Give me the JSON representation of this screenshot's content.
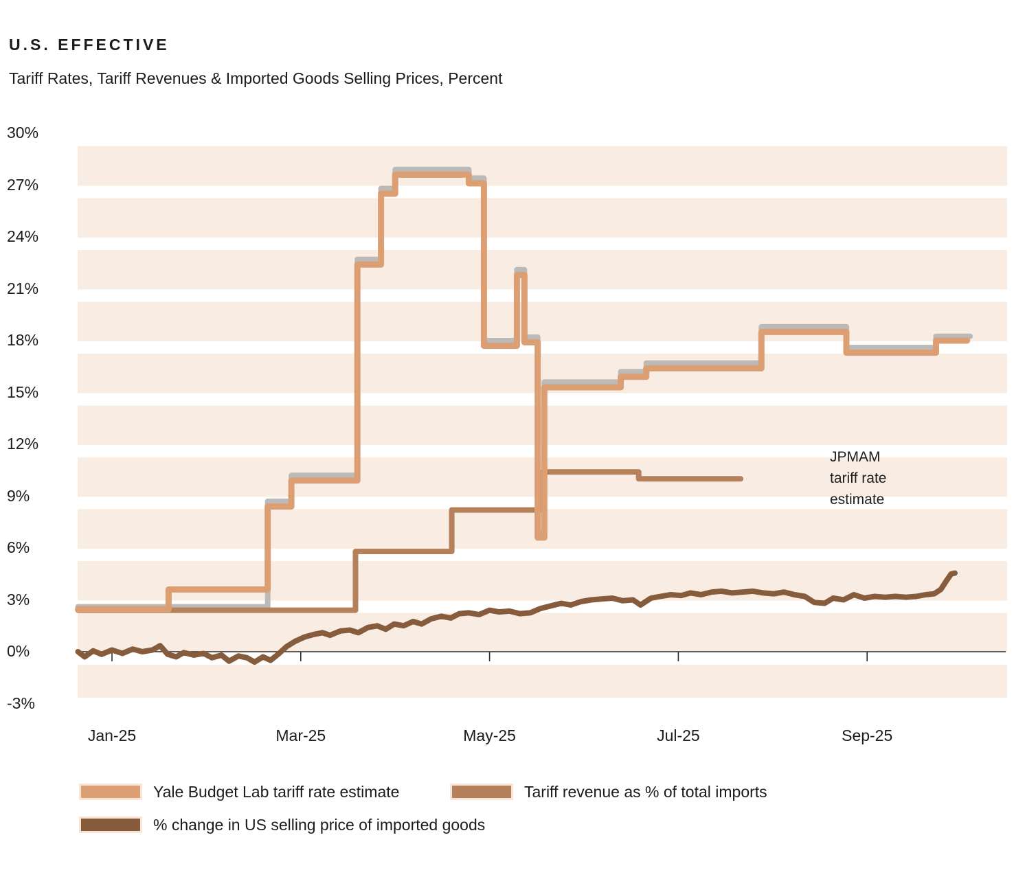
{
  "header": {
    "title": "U.S. EFFECTIVE",
    "subtitle": "Tariff Rates, Tariff Revenues & Imported Goods Selling Prices, Percent"
  },
  "annotation": {
    "line1": "JPMAM",
    "line2": "tariff rate",
    "line3": "estimate"
  },
  "legend": {
    "items": [
      {
        "label": "Yale Budget Lab tariff rate estimate",
        "color": "#dc9f73"
      },
      {
        "label": "Tariff revenue as % of total imports",
        "color": "#b5815a"
      },
      {
        "label": "% change in US selling price of imported goods",
        "color": "#865c3d"
      }
    ]
  },
  "colors": {
    "yale_line": "#dc9f73",
    "revenue_line": "#b5815a",
    "price_line": "#865c3d",
    "jpmam_line": "#bcbab8",
    "stripe_band": "#f8ece3",
    "axis": "#2f2b28",
    "text": "#1d1b1a"
  },
  "chart_data": {
    "type": "line",
    "title": "U.S. EFFECTIVE",
    "subtitle": "Tariff Rates, Tariff Revenues & Imported Goods Selling Prices, Percent",
    "xlabel": "",
    "ylabel": "Percent",
    "x_unit": "months after Jan-2025 tick",
    "x_axis": {
      "ticks": [
        {
          "label": "Jan-25",
          "month": 0
        },
        {
          "label": "Mar-25",
          "month": 2
        },
        {
          "label": "May-25",
          "month": 4
        },
        {
          "label": "Jul-25",
          "month": 6
        },
        {
          "label": "Sep-25",
          "month": 8
        }
      ],
      "range_months": [
        -0.37,
        9.55
      ]
    },
    "y_axis": {
      "min": -3,
      "max": 30,
      "step": 3,
      "ticks": [
        {
          "label": "30%",
          "value": 30
        },
        {
          "label": "27%",
          "value": 27
        },
        {
          "label": "24%",
          "value": 24
        },
        {
          "label": "21%",
          "value": 21
        },
        {
          "label": "18%",
          "value": 18
        },
        {
          "label": "15%",
          "value": 15
        },
        {
          "label": "12%",
          "value": 12
        },
        {
          "label": "9%",
          "value": 9
        },
        {
          "label": "6%",
          "value": 6
        },
        {
          "label": "3%",
          "value": 3
        },
        {
          "label": "0%",
          "value": 0
        },
        {
          "label": "-3%",
          "value": -3
        }
      ]
    },
    "grid": "horizontal striped bands",
    "legend_position": "bottom",
    "series": [
      {
        "name": "JPMAM tariff rate estimate",
        "color": "#bcbab8",
        "stroke_width": 8,
        "style": "step",
        "points": [
          [
            -0.36,
            2.6
          ],
          [
            1.65,
            2.6
          ],
          [
            1.65,
            8.7
          ],
          [
            1.9,
            8.7
          ],
          [
            1.9,
            10.2
          ],
          [
            2.6,
            10.2
          ],
          [
            2.6,
            22.7
          ],
          [
            2.85,
            22.7
          ],
          [
            2.85,
            26.8
          ],
          [
            3,
            26.8
          ],
          [
            3,
            27.9
          ],
          [
            3.78,
            27.9
          ],
          [
            3.78,
            27.4
          ],
          [
            3.94,
            27.4
          ],
          [
            3.94,
            18
          ],
          [
            4.29,
            18
          ],
          [
            4.29,
            22.1
          ],
          [
            4.37,
            22.1
          ],
          [
            4.37,
            18.2
          ],
          [
            4.51,
            18.2
          ],
          [
            4.51,
            6.9
          ],
          [
            4.58,
            6.9
          ],
          [
            4.58,
            15.6
          ],
          [
            5.39,
            15.6
          ],
          [
            5.39,
            16.2
          ],
          [
            5.66,
            16.2
          ],
          [
            5.66,
            16.7
          ],
          [
            6.88,
            16.7
          ],
          [
            6.88,
            18.8
          ],
          [
            7.78,
            18.8
          ],
          [
            7.78,
            17.6
          ],
          [
            8.73,
            17.6
          ],
          [
            8.73,
            18.25
          ],
          [
            9.09,
            18.25
          ]
        ]
      },
      {
        "name": "Tariff revenue as % of total imports",
        "color": "#b5815a",
        "stroke_width": 8,
        "style": "step",
        "points": [
          [
            -0.36,
            2.4
          ],
          [
            2.58,
            2.4
          ],
          [
            2.58,
            5.8
          ],
          [
            3.6,
            5.8
          ],
          [
            3.6,
            8.2
          ],
          [
            4.56,
            8.2
          ],
          [
            4.56,
            10.4
          ],
          [
            5.58,
            10.4
          ],
          [
            5.58,
            10
          ],
          [
            6.66,
            10
          ]
        ]
      },
      {
        "name": "% change in US selling price of imported goods",
        "color": "#865c3d",
        "stroke_width": 8,
        "style": "wiggly",
        "points": [
          [
            -0.36,
            0
          ],
          [
            -0.29,
            -0.3
          ],
          [
            -0.2,
            0.05
          ],
          [
            -0.11,
            -0.15
          ],
          [
            0,
            0.1
          ],
          [
            0.11,
            -0.1
          ],
          [
            0.22,
            0.15
          ],
          [
            0.32,
            0
          ],
          [
            0.43,
            0.1
          ],
          [
            0.51,
            0.35
          ],
          [
            0.59,
            -0.15
          ],
          [
            0.68,
            -0.3
          ],
          [
            0.76,
            -0.05
          ],
          [
            0.87,
            -0.2
          ],
          [
            0.97,
            -0.1
          ],
          [
            1.06,
            -0.35
          ],
          [
            1.16,
            -0.2
          ],
          [
            1.24,
            -0.55
          ],
          [
            1.34,
            -0.25
          ],
          [
            1.43,
            -0.35
          ],
          [
            1.51,
            -0.6
          ],
          [
            1.6,
            -0.3
          ],
          [
            1.68,
            -0.5
          ],
          [
            1.76,
            -0.15
          ],
          [
            1.85,
            0.3
          ],
          [
            1.94,
            0.6
          ],
          [
            2.04,
            0.85
          ],
          [
            2.14,
            1
          ],
          [
            2.23,
            1.1
          ],
          [
            2.31,
            0.95
          ],
          [
            2.42,
            1.2
          ],
          [
            2.52,
            1.25
          ],
          [
            2.61,
            1.1
          ],
          [
            2.71,
            1.4
          ],
          [
            2.81,
            1.5
          ],
          [
            2.9,
            1.3
          ],
          [
            2.99,
            1.6
          ],
          [
            3.09,
            1.5
          ],
          [
            3.19,
            1.75
          ],
          [
            3.28,
            1.6
          ],
          [
            3.38,
            1.9
          ],
          [
            3.49,
            2.05
          ],
          [
            3.59,
            1.95
          ],
          [
            3.68,
            2.2
          ],
          [
            3.78,
            2.25
          ],
          [
            3.89,
            2.15
          ],
          [
            4,
            2.4
          ],
          [
            4.1,
            2.3
          ],
          [
            4.21,
            2.35
          ],
          [
            4.32,
            2.2
          ],
          [
            4.43,
            2.25
          ],
          [
            4.54,
            2.5
          ],
          [
            4.65,
            2.65
          ],
          [
            4.76,
            2.8
          ],
          [
            4.86,
            2.7
          ],
          [
            4.97,
            2.9
          ],
          [
            5.08,
            3
          ],
          [
            5.19,
            3.05
          ],
          [
            5.3,
            3.1
          ],
          [
            5.41,
            2.95
          ],
          [
            5.52,
            3
          ],
          [
            5.6,
            2.7
          ],
          [
            5.71,
            3.1
          ],
          [
            5.81,
            3.2
          ],
          [
            5.92,
            3.3
          ],
          [
            6.03,
            3.25
          ],
          [
            6.13,
            3.4
          ],
          [
            6.24,
            3.3
          ],
          [
            6.35,
            3.45
          ],
          [
            6.46,
            3.5
          ],
          [
            6.57,
            3.4
          ],
          [
            6.68,
            3.45
          ],
          [
            6.79,
            3.5
          ],
          [
            6.9,
            3.4
          ],
          [
            7.01,
            3.35
          ],
          [
            7.12,
            3.45
          ],
          [
            7.23,
            3.3
          ],
          [
            7.34,
            3.2
          ],
          [
            7.44,
            2.85
          ],
          [
            7.55,
            2.8
          ],
          [
            7.64,
            3.1
          ],
          [
            7.75,
            3
          ],
          [
            7.86,
            3.3
          ],
          [
            7.97,
            3.1
          ],
          [
            8.08,
            3.2
          ],
          [
            8.19,
            3.15
          ],
          [
            8.3,
            3.2
          ],
          [
            8.41,
            3.15
          ],
          [
            8.52,
            3.2
          ],
          [
            8.62,
            3.3
          ],
          [
            8.71,
            3.35
          ],
          [
            8.78,
            3.6
          ],
          [
            8.84,
            4.1
          ],
          [
            8.89,
            4.5
          ],
          [
            8.93,
            4.55
          ]
        ]
      },
      {
        "name": "Yale Budget Lab tariff rate estimate",
        "color": "#dc9f73",
        "stroke_width": 9,
        "style": "step",
        "points": [
          [
            -0.36,
            2.45
          ],
          [
            0.6,
            2.45
          ],
          [
            0.6,
            3.6
          ],
          [
            1.65,
            3.6
          ],
          [
            1.65,
            8.4
          ],
          [
            1.9,
            8.4
          ],
          [
            1.9,
            9.9
          ],
          [
            2.6,
            9.9
          ],
          [
            2.6,
            22.4
          ],
          [
            2.85,
            22.4
          ],
          [
            2.85,
            26.5
          ],
          [
            3,
            26.5
          ],
          [
            3,
            27.6
          ],
          [
            3.78,
            27.6
          ],
          [
            3.78,
            27.1
          ],
          [
            3.94,
            27.1
          ],
          [
            3.94,
            17.7
          ],
          [
            4.29,
            17.7
          ],
          [
            4.29,
            21.8
          ],
          [
            4.37,
            21.8
          ],
          [
            4.37,
            17.9
          ],
          [
            4.51,
            17.9
          ],
          [
            4.51,
            6.6
          ],
          [
            4.58,
            6.6
          ],
          [
            4.58,
            15.3
          ],
          [
            5.39,
            15.3
          ],
          [
            5.39,
            15.9
          ],
          [
            5.66,
            15.9
          ],
          [
            5.66,
            16.4
          ],
          [
            6.88,
            16.4
          ],
          [
            6.88,
            18.5
          ],
          [
            7.78,
            18.5
          ],
          [
            7.78,
            17.3
          ],
          [
            8.73,
            17.3
          ],
          [
            8.73,
            18
          ],
          [
            9.06,
            18
          ]
        ]
      }
    ]
  }
}
